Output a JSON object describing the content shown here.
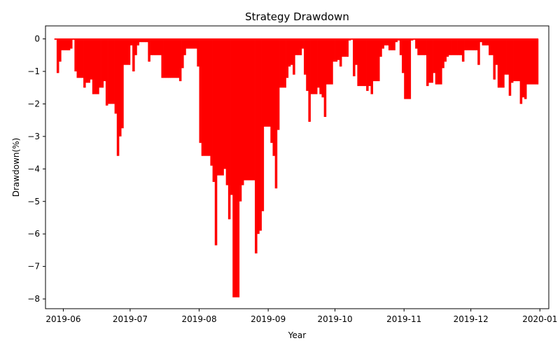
{
  "chart_data": {
    "type": "area",
    "title": "Strategy Drawdown",
    "xlabel": "Year",
    "ylabel": "Drawdown(%)",
    "color": "#ff0000",
    "grid": false,
    "xlim": [
      "2019-05-24",
      "2020-01-05"
    ],
    "ylim": [
      -8.3,
      0.4
    ],
    "x_ticks": [
      "2019-06-01",
      "2019-07-01",
      "2019-08-01",
      "2019-09-01",
      "2019-10-01",
      "2019-11-01",
      "2019-12-01",
      "2020-01-01"
    ],
    "x_tick_labels": [
      "2019-06",
      "2019-07",
      "2019-08",
      "2019-09",
      "2019-10",
      "2019-11",
      "2019-12",
      "2020-01"
    ],
    "y_ticks": [
      0,
      -1,
      -2,
      -3,
      -4,
      -5,
      -6,
      -7,
      -8
    ],
    "y_tick_labels": [
      "0",
      "−1",
      "−2",
      "−3",
      "−4",
      "−5",
      "−6",
      "−7",
      "−8"
    ],
    "x": [
      "2019-05-28",
      "2019-05-29",
      "2019-05-30",
      "2019-05-31",
      "2019-06-03",
      "2019-06-04",
      "2019-06-05",
      "2019-06-06",
      "2019-06-07",
      "2019-06-10",
      "2019-06-11",
      "2019-06-12",
      "2019-06-13",
      "2019-06-14",
      "2019-06-17",
      "2019-06-18",
      "2019-06-19",
      "2019-06-20",
      "2019-06-21",
      "2019-06-24",
      "2019-06-25",
      "2019-06-26",
      "2019-06-27",
      "2019-06-28",
      "2019-07-01",
      "2019-07-02",
      "2019-07-03",
      "2019-07-04",
      "2019-07-05",
      "2019-07-08",
      "2019-07-09",
      "2019-07-10",
      "2019-07-11",
      "2019-07-12",
      "2019-07-15",
      "2019-07-16",
      "2019-07-17",
      "2019-07-18",
      "2019-07-19",
      "2019-07-22",
      "2019-07-23",
      "2019-07-24",
      "2019-07-25",
      "2019-07-26",
      "2019-07-29",
      "2019-07-30",
      "2019-07-31",
      "2019-08-01",
      "2019-08-02",
      "2019-08-05",
      "2019-08-06",
      "2019-08-07",
      "2019-08-08",
      "2019-08-09",
      "2019-08-12",
      "2019-08-13",
      "2019-08-14",
      "2019-08-15",
      "2019-08-16",
      "2019-08-19",
      "2019-08-20",
      "2019-08-21",
      "2019-08-22",
      "2019-08-23",
      "2019-08-26",
      "2019-08-27",
      "2019-08-28",
      "2019-08-29",
      "2019-08-30",
      "2019-09-02",
      "2019-09-03",
      "2019-09-04",
      "2019-09-05",
      "2019-09-06",
      "2019-09-09",
      "2019-09-10",
      "2019-09-11",
      "2019-09-12",
      "2019-09-13",
      "2019-09-16",
      "2019-09-17",
      "2019-09-18",
      "2019-09-19",
      "2019-09-20",
      "2019-09-23",
      "2019-09-24",
      "2019-09-25",
      "2019-09-26",
      "2019-09-27",
      "2019-09-30",
      "2019-10-01",
      "2019-10-02",
      "2019-10-03",
      "2019-10-04",
      "2019-10-07",
      "2019-10-08",
      "2019-10-09",
      "2019-10-10",
      "2019-10-11",
      "2019-10-14",
      "2019-10-15",
      "2019-10-16",
      "2019-10-17",
      "2019-10-18",
      "2019-10-21",
      "2019-10-22",
      "2019-10-23",
      "2019-10-24",
      "2019-10-25",
      "2019-10-28",
      "2019-10-29",
      "2019-10-30",
      "2019-10-31",
      "2019-11-01",
      "2019-11-04",
      "2019-11-05",
      "2019-11-06",
      "2019-11-07",
      "2019-11-08",
      "2019-11-11",
      "2019-11-12",
      "2019-11-13",
      "2019-11-14",
      "2019-11-15",
      "2019-11-18",
      "2019-11-19",
      "2019-11-20",
      "2019-11-21",
      "2019-11-22",
      "2019-11-25",
      "2019-11-26",
      "2019-11-27",
      "2019-11-28",
      "2019-11-29",
      "2019-12-02",
      "2019-12-03",
      "2019-12-04",
      "2019-12-05",
      "2019-12-06",
      "2019-12-09",
      "2019-12-10",
      "2019-12-11",
      "2019-12-12",
      "2019-12-13",
      "2019-12-16",
      "2019-12-17",
      "2019-12-18",
      "2019-12-19",
      "2019-12-20",
      "2019-12-23",
      "2019-12-24",
      "2019-12-25",
      "2019-12-26",
      "2019-12-27",
      "2019-12-30",
      "2019-12-31"
    ],
    "values": [
      0,
      -1.05,
      -0.7,
      -0.35,
      -0.35,
      -0.3,
      0,
      -1.0,
      -1.2,
      -1.5,
      -1.35,
      -1.35,
      -1.25,
      -1.7,
      -1.5,
      -1.5,
      -1.3,
      -2.05,
      -2.0,
      -2.3,
      -3.6,
      -3.0,
      -2.75,
      -0.8,
      -0.2,
      -1.0,
      -0.5,
      -0.2,
      -0.1,
      -0.1,
      -0.7,
      -0.5,
      -0.5,
      -0.5,
      -1.2,
      -1.2,
      -1.2,
      -1.2,
      -1.2,
      -1.2,
      -1.3,
      -0.9,
      -0.5,
      -0.3,
      -0.3,
      -0.3,
      -0.85,
      -3.2,
      -3.6,
      -3.6,
      -3.9,
      -4.4,
      -6.35,
      -4.2,
      -4.0,
      -4.5,
      -5.55,
      -4.8,
      -7.95,
      -5.0,
      -4.5,
      -4.35,
      -4.35,
      -4.35,
      -6.6,
      -6.0,
      -5.9,
      -5.3,
      -2.7,
      -3.2,
      -3.6,
      -4.6,
      -2.8,
      -1.5,
      -1.2,
      -0.85,
      -0.8,
      -1.1,
      -0.5,
      -0.3,
      -1.1,
      -1.6,
      -2.55,
      -1.7,
      -1.5,
      -1.7,
      -1.8,
      -2.4,
      -1.4,
      -0.7,
      -0.7,
      -0.65,
      -0.85,
      -0.55,
      -0.05,
      0,
      -1.15,
      -0.8,
      -1.45,
      -1.45,
      -1.6,
      -1.45,
      -1.7,
      -1.3,
      -0.55,
      -0.3,
      -0.2,
      -0.2,
      -0.35,
      -0.1,
      -0.05,
      -0.5,
      -1.05,
      -1.85,
      -0.05,
      0,
      -0.3,
      -0.5,
      -0.5,
      -1.45,
      -1.35,
      -1.35,
      -1.05,
      -1.4,
      -0.9,
      -0.7,
      -0.55,
      -0.5,
      -0.5,
      -0.5,
      -0.5,
      -0.7,
      -0.35,
      -0.35,
      -0.35,
      -0.35,
      -0.8,
      -0.1,
      -0.2,
      -0.5,
      -0.5,
      -1.25,
      -0.8,
      -1.5,
      -1.1,
      -1.1,
      -1.75,
      -1.35,
      -1.3,
      -2.0,
      -1.8,
      -1.85,
      -1.4,
      -1.4,
      -1.4,
      -1.4
    ]
  }
}
